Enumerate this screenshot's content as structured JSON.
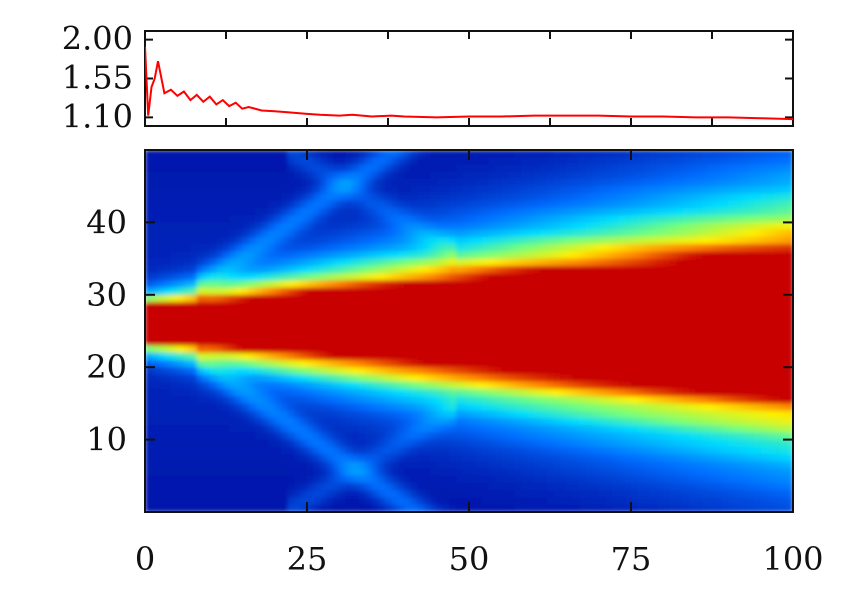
{
  "chart_data": [
    {
      "type": "line",
      "title": "",
      "xlabel": "",
      "ylabel": "",
      "xlim": [
        0,
        100
      ],
      "ylim": [
        1.0,
        2.1
      ],
      "yticks": [
        "2.00",
        "1.55",
        "1.10"
      ],
      "ytick_values": [
        2.0,
        1.55,
        1.1
      ],
      "grid": false,
      "legend": "none",
      "series": [
        {
          "color": "#ff0000",
          "x": [
            0,
            0.5,
            1,
            1.5,
            2,
            3,
            4,
            5,
            6,
            7,
            8,
            9,
            10,
            11,
            12,
            13,
            14,
            15,
            16,
            18,
            20,
            22,
            25,
            27,
            30,
            32,
            35,
            38,
            40,
            45,
            50,
            55,
            60,
            65,
            70,
            75,
            80,
            85,
            90,
            95,
            100
          ],
          "values": [
            1.92,
            1.12,
            1.45,
            1.55,
            1.75,
            1.38,
            1.42,
            1.35,
            1.4,
            1.3,
            1.36,
            1.28,
            1.34,
            1.25,
            1.3,
            1.23,
            1.27,
            1.2,
            1.22,
            1.18,
            1.17,
            1.16,
            1.14,
            1.13,
            1.12,
            1.13,
            1.11,
            1.12,
            1.11,
            1.1,
            1.11,
            1.11,
            1.12,
            1.12,
            1.12,
            1.11,
            1.11,
            1.1,
            1.1,
            1.09,
            1.08
          ]
        }
      ]
    },
    {
      "type": "heatmap",
      "title": "",
      "xlabel": "",
      "ylabel": "",
      "xlim": [
        0,
        100
      ],
      "ylim": [
        0,
        50
      ],
      "xticks": [
        "0",
        "25",
        "50",
        "75",
        "100"
      ],
      "xtick_values": [
        0,
        25,
        50,
        75,
        100
      ],
      "yticks": [
        "40",
        "30",
        "20",
        "10"
      ],
      "ytick_values": [
        40,
        30,
        20,
        10
      ],
      "colormap": "jet",
      "source_center_y": 26,
      "core_width_start": 2,
      "core_width_end": 8,
      "halo_width_end": 13,
      "reflection_x_range": [
        8,
        48
      ],
      "grid": false,
      "legend": "none"
    }
  ]
}
